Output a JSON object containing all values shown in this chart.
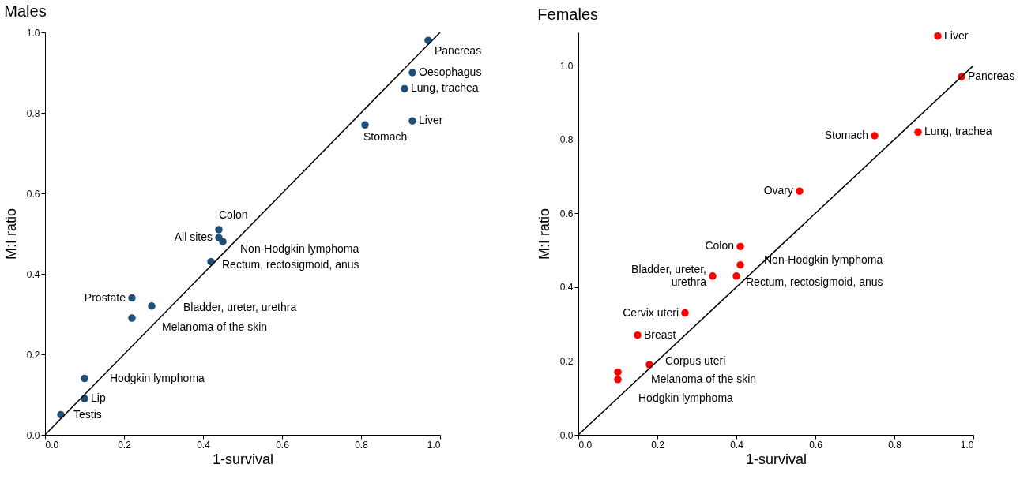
{
  "chart_data": [
    {
      "type": "scatter",
      "title": "Males",
      "xlabel": "1-survival",
      "ylabel": "M:I ratio",
      "grid": false,
      "xlim": [
        0,
        1.0
      ],
      "ylim": [
        0,
        1.0
      ],
      "xticks": [
        {
          "value": 0,
          "label": "0.0"
        },
        {
          "value": 0.2,
          "label": "0.2"
        },
        {
          "value": 0.4,
          "label": "0.4"
        },
        {
          "value": 0.6,
          "label": "0.6"
        },
        {
          "value": 0.8,
          "label": "0.8"
        },
        {
          "value": 1.0,
          "label": "1.0"
        }
      ],
      "yticks": [
        {
          "value": 0,
          "label": "0.0"
        },
        {
          "value": 0.2,
          "label": "0.2"
        },
        {
          "value": 0.4,
          "label": "0.4"
        },
        {
          "value": 0.6,
          "label": "0.6"
        },
        {
          "value": 0.8,
          "label": "0.8"
        },
        {
          "value": 1.0,
          "label": "1.0"
        }
      ],
      "series": [
        {
          "type": "scatter",
          "marker": "circle",
          "color": "#1f4e79",
          "x": [
            0.97,
            0.93,
            0.91,
            0.93,
            0.81,
            0.44,
            0.44,
            0.45,
            0.42,
            0.22,
            0.27,
            0.22,
            0.1,
            0.1,
            0.04
          ],
          "values": [
            0.98,
            0.9,
            0.86,
            0.78,
            0.77,
            0.51,
            0.49,
            0.48,
            0.43,
            0.34,
            0.32,
            0.29,
            0.14,
            0.09,
            0.05
          ]
        },
        {
          "type": "line",
          "marker": "none",
          "line_style": "solid",
          "color": "#000000",
          "x": [
            0,
            1.0
          ],
          "values": [
            0,
            1.0
          ]
        }
      ],
      "annotations": [
        {
          "text": "Pancreas",
          "x": 0.97,
          "y": 0.98
        },
        {
          "text": "Oesophagus",
          "x": 0.93,
          "y": 0.9
        },
        {
          "text": "Lung, trachea",
          "x": 0.91,
          "y": 0.86
        },
        {
          "text": "Liver",
          "x": 0.93,
          "y": 0.78
        },
        {
          "text": "Stomach",
          "x": 0.81,
          "y": 0.77
        },
        {
          "text": "Colon",
          "x": 0.44,
          "y": 0.51
        },
        {
          "text": "All sites",
          "x": 0.44,
          "y": 0.49
        },
        {
          "text": "Non-Hodgkin lymphoma",
          "x": 0.45,
          "y": 0.48
        },
        {
          "text": "Rectum, rectosigmoid, anus",
          "x": 0.42,
          "y": 0.43
        },
        {
          "text": "Prostate",
          "x": 0.22,
          "y": 0.34
        },
        {
          "text": "Bladder, ureter, urethra",
          "x": 0.27,
          "y": 0.32
        },
        {
          "text": "Melanoma of the skin",
          "x": 0.22,
          "y": 0.29
        },
        {
          "text": "Hodgkin lymphoma",
          "x": 0.1,
          "y": 0.14
        },
        {
          "text": "Lip",
          "x": 0.1,
          "y": 0.09
        },
        {
          "text": "Testis",
          "x": 0.04,
          "y": 0.05
        }
      ]
    },
    {
      "type": "scatter",
      "title": "Females",
      "xlabel": "1-survival",
      "ylabel": "M:I ratio",
      "grid": false,
      "xlim": [
        0,
        1.0
      ],
      "ylim": [
        0,
        1.09
      ],
      "xticks": [
        {
          "value": 0,
          "label": "0.0"
        },
        {
          "value": 0.2,
          "label": "0.2"
        },
        {
          "value": 0.4,
          "label": "0.4"
        },
        {
          "value": 0.6,
          "label": "0.6"
        },
        {
          "value": 0.8,
          "label": "0.8"
        },
        {
          "value": 1.0,
          "label": "1.0"
        }
      ],
      "yticks": [
        {
          "value": 0,
          "label": "0.0"
        },
        {
          "value": 0.2,
          "label": "0.2"
        },
        {
          "value": 0.4,
          "label": "0.4"
        },
        {
          "value": 0.6,
          "label": "0.6"
        },
        {
          "value": 0.8,
          "label": "0.8"
        },
        {
          "value": 1.0,
          "label": "1.0"
        }
      ],
      "series": [
        {
          "type": "scatter",
          "marker": "circle",
          "color": "#ff0000",
          "x": [
            0.91,
            0.97,
            0.75,
            0.86,
            0.56,
            0.41,
            0.34,
            0.41,
            0.4,
            0.27,
            0.15,
            0.18,
            0.1,
            0.1
          ],
          "values": [
            1.08,
            0.97,
            0.81,
            0.82,
            0.66,
            0.51,
            0.43,
            0.46,
            0.43,
            0.33,
            0.27,
            0.19,
            0.17,
            0.15
          ]
        },
        {
          "type": "line",
          "marker": "none",
          "line_style": "solid",
          "color": "#000000",
          "x": [
            0,
            1.0
          ],
          "values": [
            0,
            1.0
          ]
        }
      ],
      "annotations": [
        {
          "text": "Liver",
          "x": 0.91,
          "y": 1.08
        },
        {
          "text": "Pancreas",
          "x": 0.97,
          "y": 0.97
        },
        {
          "text": "Stomach",
          "x": 0.75,
          "y": 0.81
        },
        {
          "text": "Lung, trachea",
          "x": 0.86,
          "y": 0.82
        },
        {
          "text": "Ovary",
          "x": 0.56,
          "y": 0.66
        },
        {
          "text": "Colon",
          "x": 0.41,
          "y": 0.51
        },
        {
          "text": "Bladder, ureter,\nurethra",
          "x": 0.34,
          "y": 0.43
        },
        {
          "text": "Non-Hodgkin lymphoma",
          "x": 0.41,
          "y": 0.46
        },
        {
          "text": "Rectum, rectosigmoid, anus",
          "x": 0.4,
          "y": 0.43
        },
        {
          "text": "Cervix uteri",
          "x": 0.27,
          "y": 0.33
        },
        {
          "text": "Breast",
          "x": 0.15,
          "y": 0.27
        },
        {
          "text": "Corpus uteri",
          "x": 0.18,
          "y": 0.19
        },
        {
          "text": "Melanoma of the skin",
          "x": 0.1,
          "y": 0.17
        },
        {
          "text": "Hodgkin lymphoma",
          "x": 0.1,
          "y": 0.15
        }
      ]
    }
  ]
}
